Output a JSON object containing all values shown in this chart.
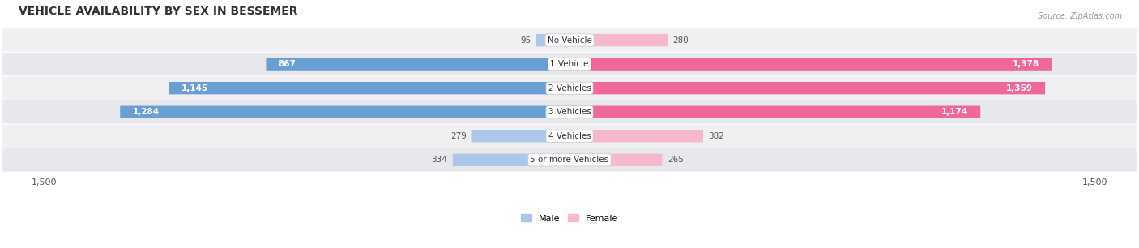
{
  "title": "VEHICLE AVAILABILITY BY SEX IN BESSEMER",
  "source": "Source: ZipAtlas.com",
  "categories": [
    "No Vehicle",
    "1 Vehicle",
    "2 Vehicles",
    "3 Vehicles",
    "4 Vehicles",
    "5 or more Vehicles"
  ],
  "male_values": [
    95,
    867,
    1145,
    1284,
    279,
    334
  ],
  "female_values": [
    280,
    1378,
    1359,
    1174,
    382,
    265
  ],
  "male_color_light": "#aec6e8",
  "male_color_dark": "#6b9fd4",
  "female_color_light": "#f5b8cc",
  "female_color_dark": "#f0679a",
  "male_label": "Male",
  "female_label": "Female",
  "xlim": 1500,
  "row_bg_even": "#f0f0f2",
  "row_bg_odd": "#e6e8ec",
  "background_color": "#ffffff",
  "bar_height": 0.52,
  "figsize": [
    14.06,
    3.06
  ],
  "dpi": 100,
  "large_threshold": 400
}
